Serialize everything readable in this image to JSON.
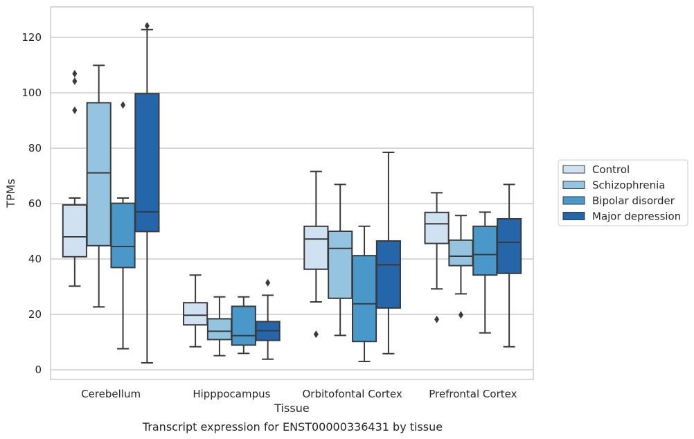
{
  "caption": "Transcript expression for ENST00000336431 by tissue",
  "chart_data": {
    "type": "boxplot",
    "xlabel": "Tissue",
    "ylabel": "TPMs",
    "ylim": [
      -3.5,
      131
    ],
    "yticks": [
      0,
      20,
      40,
      60,
      80,
      100,
      120
    ],
    "grid": "horizontal",
    "legend_position": "right",
    "categories": [
      "Cerebellum",
      "Hipppocampus",
      "Orbitofontal Cortex",
      "Prefrontal Cortex"
    ],
    "series": [
      {
        "name": "Control",
        "color": "#d0e1f2",
        "boxes": [
          {
            "whislo": 30.2,
            "q1": 40.8,
            "med": 48.0,
            "q3": 59.5,
            "whishi": 62.0,
            "fliers": [
              93.7,
              104.2,
              106.9
            ]
          },
          {
            "whislo": 8.3,
            "q1": 16.2,
            "med": 19.7,
            "q3": 24.2,
            "whishi": 34.2,
            "fliers": []
          },
          {
            "whislo": 24.5,
            "q1": 36.3,
            "med": 47.2,
            "q3": 51.8,
            "whishi": 71.6,
            "fliers": [
              12.8
            ]
          },
          {
            "whislo": 29.2,
            "q1": 45.6,
            "med": 52.7,
            "q3": 56.8,
            "whishi": 63.9,
            "fliers": [
              18.2
            ]
          }
        ]
      },
      {
        "name": "Schizophrenia",
        "color": "#94c4df",
        "boxes": [
          {
            "whislo": 22.7,
            "q1": 44.8,
            "med": 71.1,
            "q3": 96.4,
            "whishi": 109.9,
            "fliers": []
          },
          {
            "whislo": 5.1,
            "q1": 10.9,
            "med": 13.9,
            "q3": 18.4,
            "whishi": 26.3,
            "fliers": []
          },
          {
            "whislo": 12.4,
            "q1": 25.8,
            "med": 43.8,
            "q3": 50.0,
            "whishi": 66.9,
            "fliers": []
          },
          {
            "whislo": 27.4,
            "q1": 37.6,
            "med": 41.0,
            "q3": 46.8,
            "whishi": 55.7,
            "fliers": [
              19.8
            ]
          }
        ]
      },
      {
        "name": "Bipolar disorder",
        "color": "#4a98c9",
        "boxes": [
          {
            "whislo": 7.6,
            "q1": 36.9,
            "med": 44.5,
            "q3": 60.1,
            "whishi": 62.0,
            "fliers": [
              95.6
            ]
          },
          {
            "whislo": 5.9,
            "q1": 8.9,
            "med": 12.3,
            "q3": 22.9,
            "whishi": 26.3,
            "fliers": []
          },
          {
            "whislo": 3.0,
            "q1": 10.2,
            "med": 23.8,
            "q3": 41.2,
            "whishi": 51.8,
            "fliers": []
          },
          {
            "whislo": 13.3,
            "q1": 34.2,
            "med": 41.6,
            "q3": 51.8,
            "whishi": 56.9,
            "fliers": []
          }
        ]
      },
      {
        "name": "Major depression",
        "color": "#2565a9",
        "boxes": [
          {
            "whislo": 2.5,
            "q1": 49.9,
            "med": 57.0,
            "q3": 99.7,
            "whishi": 122.8,
            "fliers": [
              124.2
            ]
          },
          {
            "whislo": 3.8,
            "q1": 10.6,
            "med": 14.1,
            "q3": 17.4,
            "whishi": 26.9,
            "fliers": [
              31.4
            ]
          },
          {
            "whislo": 5.8,
            "q1": 22.3,
            "med": 37.9,
            "q3": 46.5,
            "whishi": 78.5,
            "fliers": []
          },
          {
            "whislo": 8.3,
            "q1": 34.8,
            "med": 46.0,
            "q3": 54.5,
            "whishi": 66.9,
            "fliers": []
          }
        ]
      }
    ]
  }
}
